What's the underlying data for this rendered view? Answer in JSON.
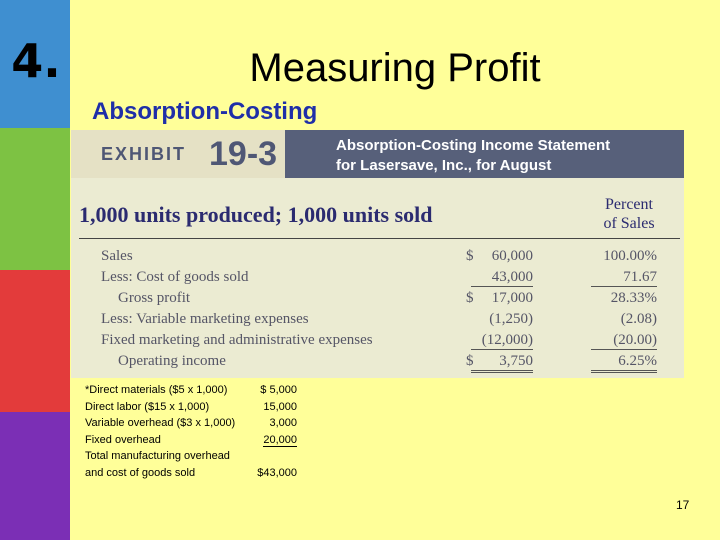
{
  "slide": {
    "number": "4.",
    "title": "Measuring Profit",
    "subtitle": "Absorption-Costing",
    "page_number": "17"
  },
  "exhibit": {
    "label": "EXHIBIT",
    "number": "19-3",
    "title_line1": "Absorption-Costing Income Statement",
    "title_line2": "for Lasersave, Inc., for August",
    "units_text": "1,000 units produced; 1,000 units sold",
    "percent_header_line1": "Percent",
    "percent_header_line2": "of Sales",
    "rows": [
      {
        "label": "Sales",
        "dollar": "$",
        "amount": "60,000",
        "percent": "100.00%"
      },
      {
        "label": "Less: Cost of goods sold",
        "dollar": "",
        "amount": "43,000",
        "percent": "71.67"
      },
      {
        "label": "Gross profit",
        "dollar": "$",
        "amount": "17,000",
        "percent": "28.33%"
      },
      {
        "label": "Less: Variable marketing expenses",
        "dollar": "",
        "amount": "(1,250)",
        "percent": "(2.08)"
      },
      {
        "label": "Fixed marketing and administrative expenses",
        "dollar": "",
        "amount": "(12,000)",
        "percent": "(20.00)"
      },
      {
        "label": "Operating income",
        "dollar": "$",
        "amount": "3,750",
        "percent": "6.25%"
      }
    ]
  },
  "notes": [
    {
      "label": "*Direct materials ($5 x 1,000)",
      "value": "$ 5,000"
    },
    {
      "label": "Direct labor ($15 x 1,000)",
      "value": "15,000"
    },
    {
      "label": "Variable overhead ($3 x 1,000)",
      "value": "3,000"
    },
    {
      "label": "Fixed overhead",
      "value": "20,000"
    },
    {
      "label": "Total manufacturing overhead",
      "value": ""
    },
    {
      "label": "and cost of goods sold",
      "value": "$43,000"
    }
  ],
  "colors": {
    "background": "#ffff99",
    "bar_blue": "#3f8fd0",
    "bar_green": "#7dc243",
    "bar_red": "#e33b3b",
    "bar_purple": "#7b2fb5",
    "subtitle": "#1f2fa8",
    "exhibit_header": "#57607a"
  }
}
